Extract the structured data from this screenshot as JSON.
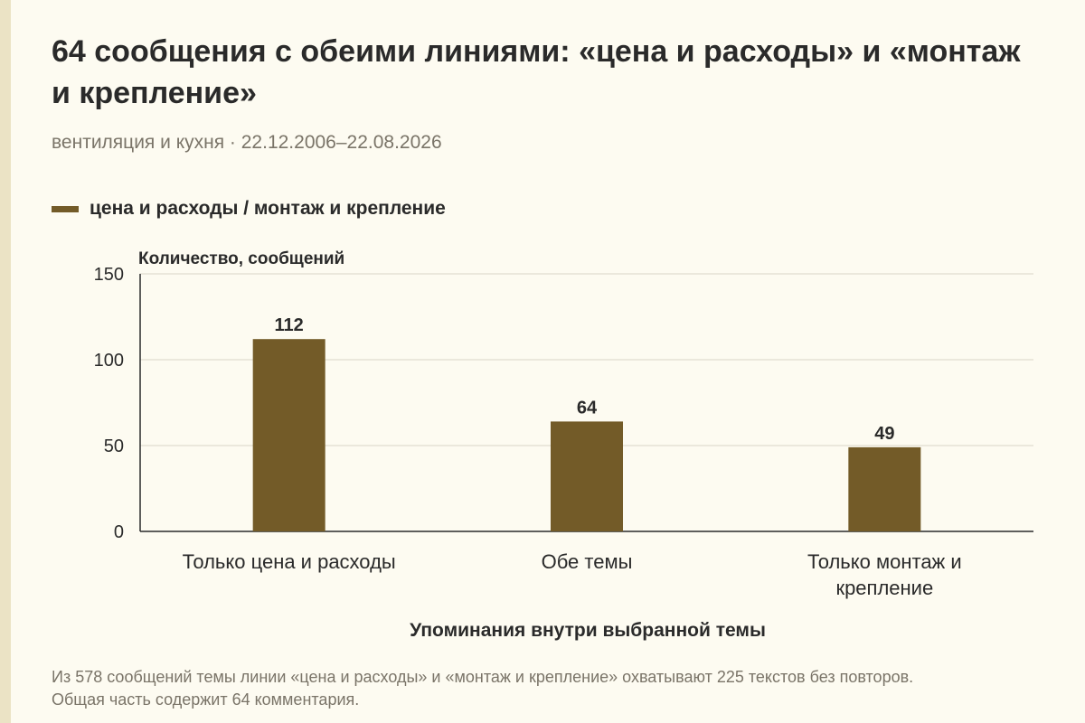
{
  "header": {
    "title": "64 сообщения с обеими линиями: «цена и расходы» и «монтаж и крепление»",
    "subtitle": "вентиляция и кухня · 22.12.2006–22.08.2026"
  },
  "legend": {
    "label": "цена и расходы / монтаж и крепление"
  },
  "colors": {
    "bar": "#735b28",
    "grid": "#d9d5c6",
    "axis": "#2a2a2a",
    "background": "#fdfbf1",
    "muted_text": "#7a7468"
  },
  "chart_data": {
    "type": "bar",
    "categories": [
      [
        "Только цена и расходы"
      ],
      [
        "Обе темы"
      ],
      [
        "Только монтаж и",
        "крепление"
      ]
    ],
    "values": [
      112,
      64,
      49
    ],
    "data_labels": [
      "112",
      "64",
      "49"
    ],
    "ylabel": "Количество, сообщений",
    "xlabel": "Упоминания внутри выбранной темы",
    "ylim": [
      0,
      150
    ],
    "yticks": [
      "0",
      "50",
      "100",
      "150"
    ],
    "ytick_values": [
      0,
      50,
      100,
      150
    ],
    "grid": true,
    "legend_position": "top-left"
  },
  "footnote": "Из 578 сообщений темы линии «цена и расходы» и «монтаж и крепление» охватывают 225 текстов без повторов. Общая часть содержит 64 комментария."
}
